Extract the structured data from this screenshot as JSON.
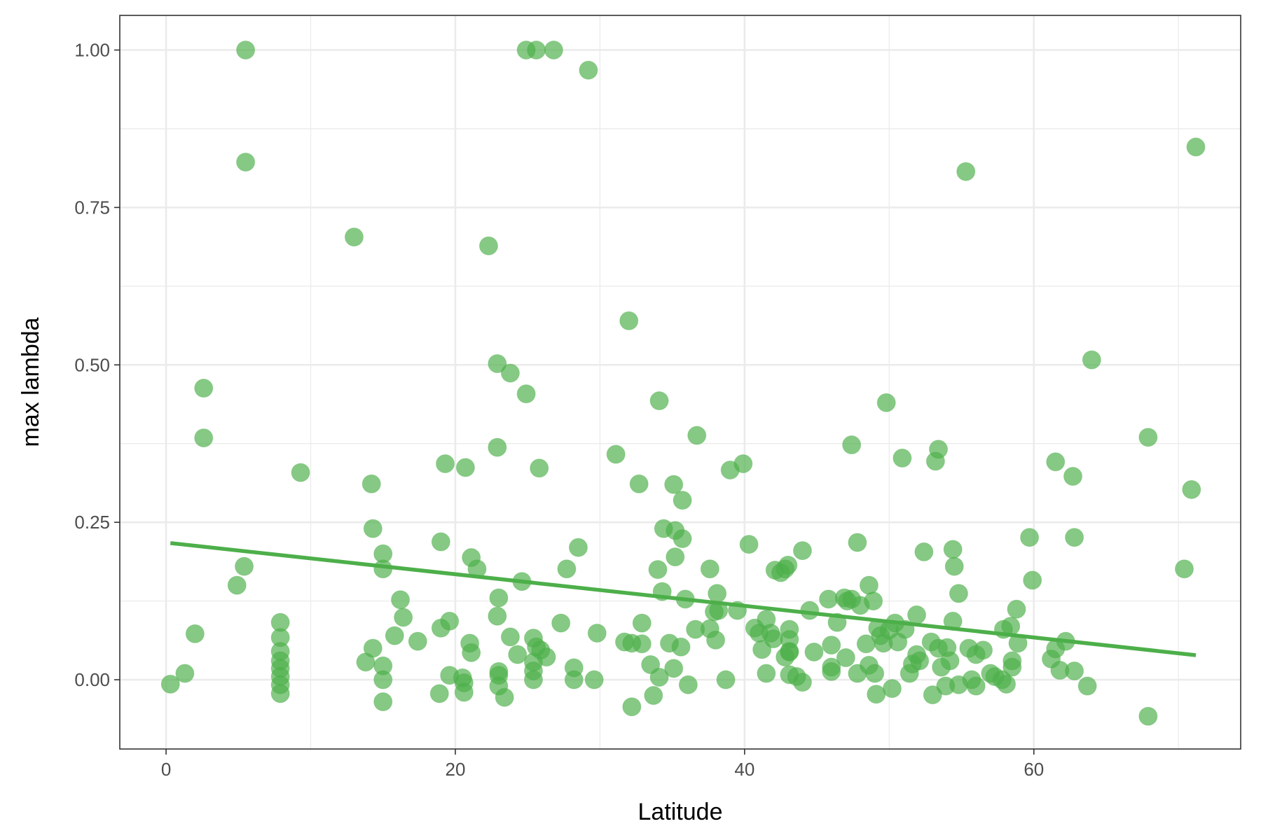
{
  "chart_data": {
    "type": "scatter",
    "title": "",
    "xlabel": "Latitude",
    "ylabel": "max lambda",
    "xlim": [
      -3.2,
      74.3
    ],
    "ylim": [
      -0.11,
      1.055
    ],
    "x_ticks": [
      0,
      20,
      40,
      60
    ],
    "x_tick_labels": [
      "0",
      "20",
      "40",
      "60"
    ],
    "y_ticks": [
      0,
      0.25,
      0.5,
      0.75,
      1.0
    ],
    "y_tick_labels": [
      "0.00",
      "0.25",
      "0.50",
      "0.75",
      "1.00"
    ],
    "grid": true,
    "legend": "none",
    "point_color": "#4daf4a",
    "trend_line": {
      "x": [
        0.3,
        71.2
      ],
      "y": [
        0.217,
        0.039
      ]
    },
    "points": [
      [
        0.3,
        -0.007
      ],
      [
        1.3,
        0.01
      ],
      [
        2.0,
        0.073
      ],
      [
        2.6,
        0.463
      ],
      [
        2.6,
        0.384
      ],
      [
        4.9,
        0.15
      ],
      [
        5.4,
        0.18
      ],
      [
        5.5,
        1.0
      ],
      [
        5.5,
        0.822
      ],
      [
        7.9,
        0.091
      ],
      [
        7.9,
        0.067
      ],
      [
        7.9,
        0.045
      ],
      [
        7.9,
        0.03
      ],
      [
        7.9,
        0.018
      ],
      [
        7.9,
        0.005
      ],
      [
        7.9,
        -0.008
      ],
      [
        7.9,
        -0.022
      ],
      [
        9.3,
        0.329
      ],
      [
        13.0,
        0.703
      ],
      [
        13.8,
        0.028
      ],
      [
        14.2,
        0.311
      ],
      [
        14.3,
        0.24
      ],
      [
        14.3,
        0.05
      ],
      [
        15.0,
        0.2
      ],
      [
        15.0,
        0.176
      ],
      [
        15.0,
        0.022
      ],
      [
        15.0,
        0.0
      ],
      [
        15.0,
        -0.035
      ],
      [
        15.8,
        0.07
      ],
      [
        16.2,
        0.127
      ],
      [
        16.4,
        0.099
      ],
      [
        17.4,
        0.061
      ],
      [
        18.9,
        -0.022
      ],
      [
        19.0,
        0.082
      ],
      [
        19.0,
        0.219
      ],
      [
        19.3,
        0.343
      ],
      [
        19.6,
        0.093
      ],
      [
        19.6,
        0.007
      ],
      [
        20.5,
        0.003
      ],
      [
        20.6,
        -0.005
      ],
      [
        20.6,
        -0.02
      ],
      [
        20.7,
        0.337
      ],
      [
        21.0,
        0.058
      ],
      [
        21.1,
        0.043
      ],
      [
        21.1,
        0.194
      ],
      [
        21.5,
        0.176
      ],
      [
        22.3,
        0.689
      ],
      [
        22.9,
        0.502
      ],
      [
        22.9,
        0.369
      ],
      [
        23.0,
        0.13
      ],
      [
        22.9,
        0.101
      ],
      [
        23.0,
        0.013
      ],
      [
        23.0,
        0.007
      ],
      [
        23.0,
        -0.01
      ],
      [
        23.4,
        -0.028
      ],
      [
        23.8,
        0.487
      ],
      [
        23.8,
        0.068
      ],
      [
        24.3,
        0.04
      ],
      [
        24.6,
        0.156
      ],
      [
        24.9,
        0.454
      ],
      [
        24.9,
        1.0
      ],
      [
        25.4,
        0.066
      ],
      [
        25.4,
        0.028
      ],
      [
        25.4,
        0.014
      ],
      [
        25.4,
        0.0
      ],
      [
        25.6,
        0.052
      ],
      [
        25.6,
        1.0
      ],
      [
        25.8,
        0.336
      ],
      [
        25.9,
        0.047
      ],
      [
        26.3,
        0.036
      ],
      [
        26.8,
        1.0
      ],
      [
        27.3,
        0.09
      ],
      [
        27.7,
        0.176
      ],
      [
        28.2,
        0.019
      ],
      [
        28.2,
        0.0
      ],
      [
        28.5,
        0.21
      ],
      [
        29.2,
        0.968
      ],
      [
        29.6,
        0.0
      ],
      [
        29.8,
        0.074
      ],
      [
        31.1,
        0.358
      ],
      [
        31.7,
        0.06
      ],
      [
        32.0,
        0.57
      ],
      [
        32.2,
        0.058
      ],
      [
        32.2,
        -0.043
      ],
      [
        32.7,
        0.311
      ],
      [
        32.9,
        0.057
      ],
      [
        32.9,
        0.09
      ],
      [
        33.5,
        0.024
      ],
      [
        33.7,
        -0.025
      ],
      [
        34.0,
        0.175
      ],
      [
        34.1,
        0.443
      ],
      [
        34.1,
        0.004
      ],
      [
        34.3,
        0.14
      ],
      [
        34.4,
        0.24
      ],
      [
        34.8,
        0.058
      ],
      [
        35.1,
        0.31
      ],
      [
        35.1,
        0.018
      ],
      [
        35.2,
        0.237
      ],
      [
        35.2,
        0.195
      ],
      [
        35.6,
        0.052
      ],
      [
        35.7,
        0.285
      ],
      [
        35.7,
        0.224
      ],
      [
        35.9,
        0.128
      ],
      [
        36.1,
        -0.008
      ],
      [
        36.6,
        0.08
      ],
      [
        36.7,
        0.388
      ],
      [
        37.6,
        0.176
      ],
      [
        37.6,
        0.081
      ],
      [
        37.9,
        0.108
      ],
      [
        38.0,
        0.063
      ],
      [
        38.1,
        0.137
      ],
      [
        38.2,
        0.11
      ],
      [
        38.7,
        0.0
      ],
      [
        39.0,
        0.333
      ],
      [
        39.5,
        0.11
      ],
      [
        39.9,
        0.343
      ],
      [
        40.3,
        0.215
      ],
      [
        40.7,
        0.082
      ],
      [
        41.0,
        0.074
      ],
      [
        41.2,
        0.048
      ],
      [
        41.5,
        0.01
      ],
      [
        41.5,
        0.096
      ],
      [
        41.8,
        0.074
      ],
      [
        42.0,
        0.065
      ],
      [
        42.1,
        0.174
      ],
      [
        42.5,
        0.17
      ],
      [
        42.8,
        0.036
      ],
      [
        42.8,
        0.176
      ],
      [
        43.0,
        0.182
      ],
      [
        43.1,
        0.08
      ],
      [
        43.1,
        0.045
      ],
      [
        43.1,
        0.064
      ],
      [
        43.1,
        0.008
      ],
      [
        43.1,
        0.044
      ],
      [
        43.6,
        0.005
      ],
      [
        44.0,
        0.205
      ],
      [
        44.0,
        -0.004
      ],
      [
        44.5,
        0.11
      ],
      [
        44.8,
        0.044
      ],
      [
        45.8,
        0.128
      ],
      [
        46.0,
        0.055
      ],
      [
        46.0,
        0.02
      ],
      [
        46.0,
        0.013
      ],
      [
        46.4,
        0.091
      ],
      [
        46.9,
        0.13
      ],
      [
        47.0,
        0.035
      ],
      [
        47.1,
        0.125
      ],
      [
        47.4,
        0.373
      ],
      [
        47.4,
        0.128
      ],
      [
        47.8,
        0.218
      ],
      [
        47.8,
        0.01
      ],
      [
        48.0,
        0.118
      ],
      [
        48.4,
        0.057
      ],
      [
        48.6,
        0.15
      ],
      [
        48.6,
        0.023
      ],
      [
        48.9,
        0.125
      ],
      [
        49.0,
        0.01
      ],
      [
        49.1,
        -0.023
      ],
      [
        49.2,
        0.082
      ],
      [
        49.4,
        0.07
      ],
      [
        49.6,
        0.058
      ],
      [
        49.8,
        0.44
      ],
      [
        50.0,
        0.079
      ],
      [
        50.2,
        -0.014
      ],
      [
        50.4,
        0.09
      ],
      [
        50.6,
        0.06
      ],
      [
        50.9,
        0.352
      ],
      [
        51.1,
        0.08
      ],
      [
        51.4,
        0.01
      ],
      [
        51.6,
        0.025
      ],
      [
        51.9,
        0.103
      ],
      [
        51.9,
        0.04
      ],
      [
        52.1,
        0.03
      ],
      [
        52.4,
        0.203
      ],
      [
        52.9,
        0.06
      ],
      [
        53.0,
        -0.024
      ],
      [
        53.2,
        0.347
      ],
      [
        53.4,
        0.366
      ],
      [
        53.4,
        0.05
      ],
      [
        53.6,
        0.02
      ],
      [
        53.9,
        -0.01
      ],
      [
        54.0,
        0.051
      ],
      [
        54.2,
        0.03
      ],
      [
        54.4,
        0.207
      ],
      [
        54.5,
        0.18
      ],
      [
        54.4,
        0.093
      ],
      [
        54.8,
        0.137
      ],
      [
        54.8,
        -0.008
      ],
      [
        55.3,
        0.807
      ],
      [
        55.5,
        0.05
      ],
      [
        55.7,
        0.0
      ],
      [
        56.0,
        -0.01
      ],
      [
        56.0,
        0.04
      ],
      [
        56.5,
        0.047
      ],
      [
        57.0,
        0.01
      ],
      [
        57.3,
        0.005
      ],
      [
        57.8,
        0.0
      ],
      [
        57.9,
        0.08
      ],
      [
        58.1,
        -0.007
      ],
      [
        58.4,
        0.085
      ],
      [
        58.5,
        0.03
      ],
      [
        58.5,
        0.02
      ],
      [
        58.8,
        0.112
      ],
      [
        58.9,
        0.058
      ],
      [
        59.7,
        0.226
      ],
      [
        59.9,
        0.158
      ],
      [
        61.2,
        0.033
      ],
      [
        61.5,
        0.346
      ],
      [
        61.5,
        0.049
      ],
      [
        61.8,
        0.015
      ],
      [
        62.2,
        0.061
      ],
      [
        62.7,
        0.323
      ],
      [
        62.8,
        0.226
      ],
      [
        62.8,
        0.014
      ],
      [
        63.7,
        -0.01
      ],
      [
        64.0,
        0.508
      ],
      [
        67.9,
        0.385
      ],
      [
        67.9,
        -0.058
      ],
      [
        70.4,
        0.176
      ],
      [
        70.9,
        0.302
      ],
      [
        71.2,
        0.846
      ]
    ]
  }
}
